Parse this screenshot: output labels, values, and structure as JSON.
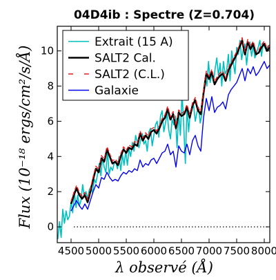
{
  "chart_data": {
    "type": "line",
    "title": "04D4ib : Spectre (Z=0.704)",
    "xlabel": "λ observé (Å)",
    "ylabel": "Flux (10⁻¹⁸ ergs/cm²/s/Å)",
    "xlim": [
      4250,
      8100
    ],
    "ylim": [
      -0.9,
      11.4
    ],
    "x_ticks": [
      4500,
      5000,
      5500,
      6000,
      6500,
      7000,
      7500,
      8000
    ],
    "x_tick_labels": [
      "4500",
      "5000",
      "5500",
      "6000",
      "6500",
      "7000",
      "7500",
      "8000"
    ],
    "y_ticks": [
      0,
      2,
      4,
      6,
      8,
      10
    ],
    "y_tick_labels": [
      "0",
      "2",
      "4",
      "6",
      "8",
      "10"
    ],
    "zero_line": {
      "y": 0,
      "style": "dotted",
      "color": "#000000",
      "x_start": 4550
    },
    "legend_position": "upper-left",
    "grid": false,
    "series": [
      {
        "name": "Extrait (15 A)",
        "color": "#00bfbf",
        "width": 1.6,
        "dash": "none",
        "x": [
          4260,
          4290,
          4320,
          4350,
          4380,
          4410,
          4440,
          4470,
          4500,
          4530,
          4560,
          4590,
          4620,
          4650,
          4680,
          4710,
          4740,
          4770,
          4800,
          4830,
          4860,
          4890,
          4920,
          4950,
          4980,
          5010,
          5040,
          5070,
          5100,
          5130,
          5160,
          5190,
          5220,
          5250,
          5280,
          5310,
          5340,
          5370,
          5400,
          5430,
          5460,
          5490,
          5520,
          5550,
          5580,
          5610,
          5640,
          5670,
          5700,
          5730,
          5760,
          5790,
          5820,
          5850,
          5880,
          5910,
          5940,
          5970,
          6000,
          6030,
          6060,
          6090,
          6120,
          6150,
          6180,
          6210,
          6240,
          6270,
          6300,
          6330,
          6360,
          6390,
          6420,
          6450,
          6480,
          6510,
          6540,
          6570,
          6600,
          6630,
          6660,
          6690,
          6720,
          6750,
          6780,
          6810,
          6840,
          6870,
          6900,
          6930,
          6960,
          6990,
          7020,
          7050,
          7080,
          7110,
          7140,
          7170,
          7200,
          7230,
          7260,
          7290,
          7320,
          7350,
          7380,
          7410,
          7440,
          7470,
          7500,
          7530,
          7560,
          7590,
          7620,
          7650,
          7680,
          7710,
          7740,
          7770,
          7800,
          7830,
          7860,
          7890,
          7920,
          7950,
          7980,
          8010,
          8040,
          8070,
          8100
        ],
        "y": [
          -0.7,
          0.3,
          -0.6,
          1.0,
          0.2,
          0.9,
          0.4,
          0.6,
          1.4,
          0.8,
          2.0,
          1.1,
          1.8,
          1.2,
          1.5,
          2.4,
          1.7,
          2.0,
          1.6,
          2.1,
          2.3,
          1.9,
          2.7,
          2.5,
          3.0,
          3.6,
          2.9,
          3.9,
          3.4,
          3.1,
          4.3,
          3.0,
          3.4,
          3.2,
          3.6,
          3.7,
          3.3,
          4.0,
          3.2,
          4.1,
          3.5,
          4.3,
          3.5,
          4.4,
          4.0,
          4.8,
          4.3,
          5.2,
          4.8,
          4.5,
          4.9,
          5.3,
          4.7,
          4.9,
          4.3,
          5.4,
          5.6,
          4.6,
          5.2,
          5.8,
          6.0,
          5.1,
          6.3,
          6.6,
          5.4,
          5.9,
          6.5,
          5.5,
          5.0,
          6.1,
          5.8,
          6.3,
          4.5,
          6.5,
          5.2,
          7.6,
          5.8,
          3.6,
          6.8,
          5.4,
          6.6,
          6.7,
          6.9,
          6.0,
          6.5,
          6.8,
          5.9,
          6.4,
          7.7,
          8.5,
          8.0,
          9.4,
          8.2,
          8.7,
          8.2,
          9.0,
          9.6,
          8.6,
          9.3,
          8.0,
          9.4,
          8.7,
          8.9,
          9.8,
          8.3,
          10.0,
          9.3,
          8.7,
          10.2,
          9.8,
          10.6,
          9.5,
          10.1,
          10.4,
          9.2,
          10.1,
          10.5,
          9.7,
          10.3,
          9.6,
          9.9,
          10.2,
          10.6,
          9.7,
          10.4,
          10.2,
          10.0,
          10.3,
          10.1
        ]
      },
      {
        "name": "SALT2 Cal.",
        "color": "#000000",
        "width": 2.6,
        "dash": "none",
        "x": [
          4500,
          4550,
          4600,
          4650,
          4700,
          4750,
          4800,
          4850,
          4900,
          4950,
          5000,
          5050,
          5100,
          5150,
          5200,
          5250,
          5300,
          5350,
          5400,
          5450,
          5500,
          5550,
          5600,
          5650,
          5700,
          5750,
          5800,
          5850,
          5900,
          5950,
          6000,
          6050,
          6100,
          6150,
          6200,
          6250,
          6300,
          6350,
          6400,
          6450,
          6500,
          6550,
          6600,
          6650,
          6700,
          6750,
          6800,
          6850,
          6900,
          6950,
          7000,
          7050,
          7100,
          7150,
          7200,
          7250,
          7300,
          7350,
          7400,
          7450,
          7500,
          7550,
          7600,
          7650,
          7700,
          7750,
          7800,
          7850,
          7900,
          7950,
          8000,
          8050,
          8100
        ],
        "y": [
          1.3,
          1.8,
          2.2,
          1.8,
          1.6,
          1.8,
          1.4,
          2.0,
          2.7,
          3.3,
          3.1,
          3.9,
          3.7,
          4.4,
          4.0,
          3.6,
          3.7,
          3.5,
          4.0,
          4.4,
          4.2,
          4.5,
          4.4,
          4.7,
          4.6,
          5.3,
          4.9,
          5.2,
          5.0,
          5.4,
          5.5,
          5.3,
          5.6,
          6.0,
          6.2,
          6.7,
          6.1,
          6.4,
          5.6,
          6.5,
          6.3,
          6.4,
          6.8,
          6.2,
          6.9,
          7.2,
          6.6,
          6.4,
          7.6,
          8.7,
          8.4,
          8.8,
          8.1,
          8.4,
          8.6,
          8.7,
          8.3,
          8.9,
          9.2,
          9.5,
          9.8,
          10.2,
          10.6,
          9.8,
          10.5,
          10.1,
          10.4,
          9.8,
          9.9,
          10.2,
          10.4,
          10.0,
          10.2
        ]
      },
      {
        "name": "SALT2 (C.L.)",
        "color": "#e61c1c",
        "width": 1.4,
        "dash": "6,3",
        "x": [
          4500,
          4550,
          4600,
          4650,
          4700,
          4750,
          4800,
          4850,
          4900,
          4950,
          5000,
          5050,
          5100,
          5150,
          5200,
          5250,
          5300,
          5350,
          5400,
          5450,
          5500,
          5550,
          5600,
          5650,
          5700,
          5750,
          5800,
          5850,
          5900,
          5950,
          6000,
          6050,
          6100,
          6150,
          6200,
          6250,
          6300,
          6350,
          6400,
          6450,
          6500,
          6550,
          6600,
          6650,
          6700,
          6750,
          6800,
          6850,
          6900,
          6950,
          7000,
          7050,
          7100,
          7150,
          7200,
          7250,
          7300,
          7350,
          7400,
          7450,
          7500,
          7550,
          7600,
          7650,
          7700,
          7750,
          7800,
          7850,
          7900,
          7950,
          8000,
          8050,
          8100
        ],
        "y": [
          1.45,
          1.95,
          2.35,
          1.95,
          1.75,
          1.95,
          1.55,
          2.15,
          2.85,
          3.45,
          3.25,
          4.05,
          3.85,
          4.55,
          4.15,
          3.75,
          3.85,
          3.65,
          4.15,
          4.55,
          4.35,
          4.65,
          4.55,
          4.85,
          4.75,
          5.45,
          5.05,
          5.35,
          5.15,
          5.55,
          5.65,
          5.45,
          5.75,
          6.15,
          6.35,
          6.85,
          6.25,
          6.55,
          5.75,
          6.65,
          6.45,
          6.55,
          6.95,
          6.35,
          7.05,
          7.35,
          6.75,
          6.55,
          7.75,
          8.85,
          8.55,
          8.95,
          8.25,
          8.55,
          8.75,
          8.85,
          8.45,
          9.05,
          9.35,
          9.65,
          9.95,
          10.35,
          10.75,
          9.95,
          10.65,
          10.25,
          10.55,
          9.95,
          10.05,
          10.35,
          10.55,
          10.15,
          10.35
        ]
      },
      {
        "name": "Galaxie",
        "color": "#0000ee",
        "width": 1.4,
        "dash": "none",
        "x": [
          4500,
          4550,
          4600,
          4650,
          4700,
          4750,
          4800,
          4850,
          4900,
          4950,
          5000,
          5050,
          5100,
          5150,
          5200,
          5250,
          5300,
          5350,
          5400,
          5450,
          5500,
          5550,
          5600,
          5650,
          5700,
          5750,
          5800,
          5850,
          5900,
          5950,
          6000,
          6050,
          6100,
          6150,
          6200,
          6250,
          6300,
          6350,
          6400,
          6450,
          6500,
          6550,
          6600,
          6650,
          6700,
          6750,
          6800,
          6850,
          6900,
          6950,
          7000,
          7050,
          7100,
          7150,
          7200,
          7250,
          7300,
          7350,
          7400,
          7450,
          7500,
          7550,
          7600,
          7650,
          7700,
          7750,
          7800,
          7850,
          7900,
          7950,
          8000,
          8050,
          8100
        ],
        "y": [
          0.9,
          1.2,
          1.5,
          1.2,
          1.0,
          1.3,
          1.0,
          1.5,
          2.0,
          2.4,
          2.2,
          2.8,
          2.7,
          3.1,
          2.8,
          2.6,
          2.7,
          2.6,
          2.9,
          3.1,
          3.0,
          3.2,
          3.1,
          3.3,
          3.2,
          3.8,
          3.4,
          3.6,
          3.5,
          3.8,
          3.9,
          3.6,
          3.9,
          4.2,
          4.3,
          4.7,
          4.1,
          4.3,
          3.4,
          4.6,
          4.3,
          4.2,
          4.7,
          4.1,
          4.9,
          5.2,
          4.6,
          4.3,
          6.2,
          7.3,
          6.6,
          7.4,
          6.5,
          6.8,
          6.9,
          7.1,
          6.7,
          7.5,
          7.8,
          8.0,
          8.2,
          8.6,
          9.0,
          8.3,
          9.0,
          8.7,
          9.1,
          8.6,
          8.8,
          9.1,
          9.4,
          9.0,
          9.2
        ]
      }
    ]
  }
}
